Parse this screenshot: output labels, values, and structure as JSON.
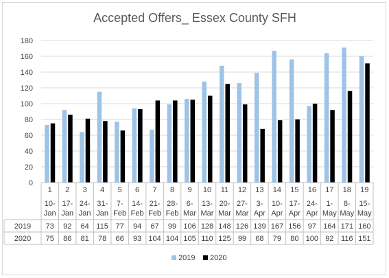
{
  "chart_data": {
    "type": "bar",
    "title": "Accepted Offers_ Essex County SFH",
    "ylim": [
      0,
      180
    ],
    "yticks": [
      0,
      20,
      40,
      60,
      80,
      100,
      120,
      140,
      160,
      180
    ],
    "grid": true,
    "legend_position": "bottom",
    "categories": [
      {
        "week": "1",
        "date": "10-Jan"
      },
      {
        "week": "2",
        "date": "17-Jan"
      },
      {
        "week": "3",
        "date": "24-Jan"
      },
      {
        "week": "4",
        "date": "31-Jan"
      },
      {
        "week": "5",
        "date": "7-Feb"
      },
      {
        "week": "6",
        "date": "14-Feb"
      },
      {
        "week": "7",
        "date": "21-Feb"
      },
      {
        "week": "8",
        "date": "28-Feb"
      },
      {
        "week": "9",
        "date": "6-Mar"
      },
      {
        "week": "10",
        "date": "13-Mar"
      },
      {
        "week": "11",
        "date": "20-Mar"
      },
      {
        "week": "12",
        "date": "27-Mar"
      },
      {
        "week": "13",
        "date": "3-Apr"
      },
      {
        "week": "14",
        "date": "10-Apr"
      },
      {
        "week": "15",
        "date": "17-Apr"
      },
      {
        "week": "16",
        "date": "24-Apr"
      },
      {
        "week": "17",
        "date": "1-May"
      },
      {
        "week": "18",
        "date": "8-May"
      },
      {
        "week": "19",
        "date": "15-May"
      }
    ],
    "series": [
      {
        "name": "2019",
        "color": "#9dc3e6",
        "values": [
          73,
          92,
          64,
          115,
          77,
          94,
          67,
          99,
          106,
          128,
          148,
          126,
          139,
          167,
          156,
          97,
          164,
          171,
          160
        ]
      },
      {
        "name": "2020",
        "color": "#000000",
        "values": [
          75,
          86,
          81,
          78,
          66,
          93,
          104,
          104,
          105,
          110,
          125,
          99,
          68,
          79,
          80,
          100,
          92,
          116,
          151
        ]
      }
    ]
  }
}
